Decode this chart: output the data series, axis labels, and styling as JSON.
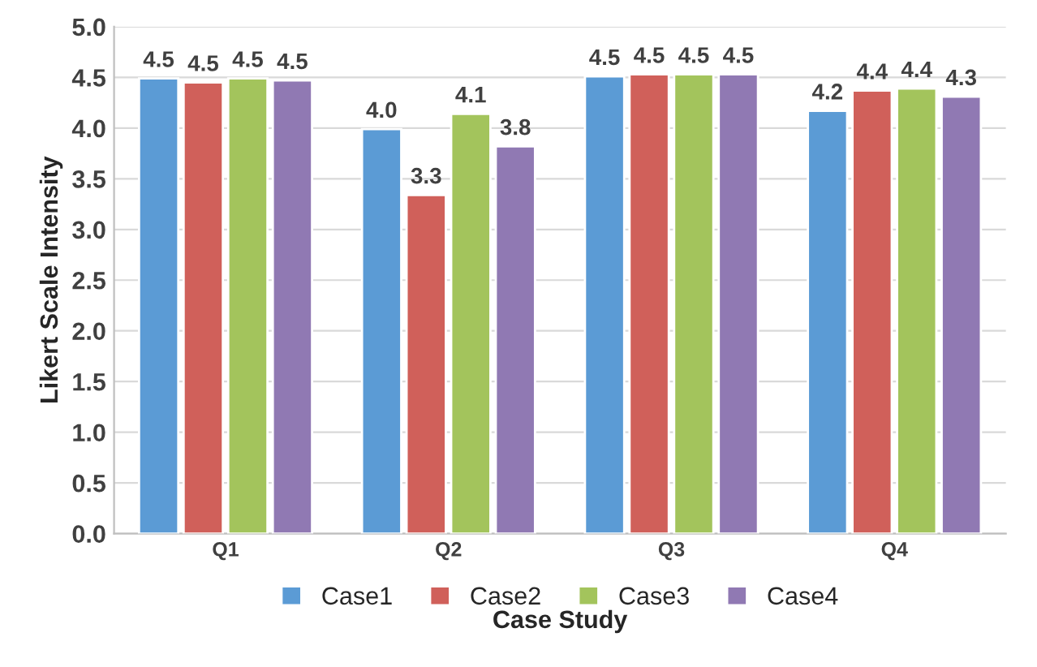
{
  "chart_data": {
    "type": "bar",
    "xlabel": "Case Study",
    "ylabel": "Likert Scale Intensity",
    "categories": [
      "Q1",
      "Q2",
      "Q3",
      "Q4"
    ],
    "series": [
      {
        "name": "Case1",
        "color": "#5b9bd5",
        "values": [
          4.49,
          3.99,
          4.51,
          4.17
        ],
        "value_labels": [
          "4.5",
          "4.0",
          "4.5",
          "4.2"
        ]
      },
      {
        "name": "Case2",
        "color": "#d0605a",
        "values": [
          4.45,
          3.34,
          4.53,
          4.37
        ],
        "value_labels": [
          "4.5",
          "3.3",
          "4.5",
          "4.4"
        ]
      },
      {
        "name": "Case3",
        "color": "#a3c45c",
        "values": [
          4.49,
          4.14,
          4.53,
          4.39
        ],
        "value_labels": [
          "4.5",
          "4.1",
          "4.5",
          "4.4"
        ]
      },
      {
        "name": "Case4",
        "color": "#9079b3",
        "values": [
          4.47,
          3.82,
          4.53,
          4.31
        ],
        "value_labels": [
          "4.5",
          "3.8",
          "4.5",
          "4.3"
        ]
      }
    ],
    "ylim": [
      0,
      5
    ],
    "yticks": [
      {
        "value": 0,
        "label": "0.0"
      },
      {
        "value": 0.5,
        "label": "0.5"
      },
      {
        "value": 1,
        "label": "1.0"
      },
      {
        "value": 1.5,
        "label": "1.5"
      },
      {
        "value": 2,
        "label": "2.0"
      },
      {
        "value": 2.5,
        "label": "2.5"
      },
      {
        "value": 3,
        "label": "3.0"
      },
      {
        "value": 3.5,
        "label": "3.5"
      },
      {
        "value": 4,
        "label": "4.0"
      },
      {
        "value": 4.5,
        "label": "4.5"
      },
      {
        "value": 5,
        "label": "5.0"
      }
    ],
    "grid": "y",
    "legend": "bottom"
  }
}
